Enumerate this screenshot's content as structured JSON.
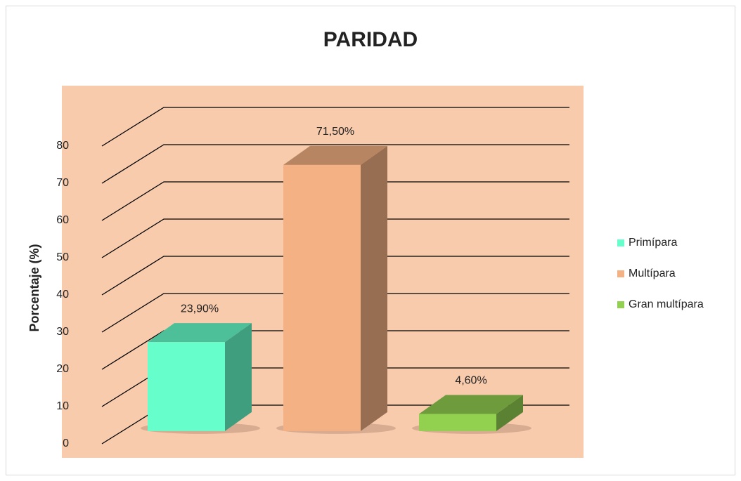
{
  "chart_data": {
    "type": "bar3d",
    "title": "PARIDAD",
    "y_label": "Porcentaje  (%)",
    "series": [
      {
        "name": "Primípara",
        "color": "#66ffcc",
        "values": [
          23.9
        ],
        "value_labels": [
          "23,90%"
        ]
      },
      {
        "name": "Multípara",
        "color": "#f4b183",
        "values": [
          71.5
        ],
        "value_labels": [
          "71,50%"
        ]
      },
      {
        "name": "Gran multípara",
        "color": "#92d050",
        "values": [
          4.6
        ],
        "value_labels": [
          "4,60%"
        ]
      }
    ],
    "ylim": [
      0,
      80
    ],
    "yticks": [
      0,
      10,
      20,
      30,
      40,
      50,
      60,
      70,
      80
    ],
    "grid": true,
    "legend": "right"
  }
}
